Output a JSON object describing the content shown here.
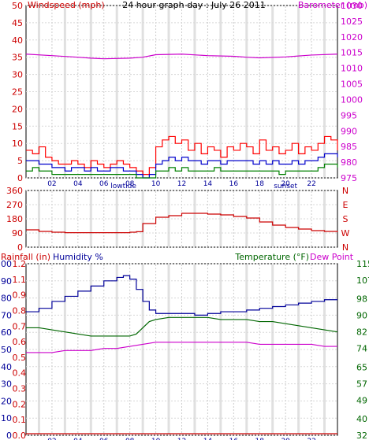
{
  "chart_data": [
    {
      "type": "line",
      "title": "24 hour graph day : July 26 2011",
      "ylabel_left": "Windspeed (mph)",
      "ylabel_right": "Barometer (mb)",
      "ylim_left": [
        0,
        50
      ],
      "ylim_right": [
        975,
        1030
      ],
      "left_ticks": [
        "0",
        "5",
        "10",
        "15",
        "20",
        "25",
        "30",
        "35",
        "40",
        "45",
        "50"
      ],
      "right_ticks": [
        "975",
        "980",
        "985",
        "990",
        "995",
        "1000",
        "1005",
        "1010",
        "1015",
        "1020",
        "1025",
        "1030"
      ],
      "x_ticks": [
        "02",
        "04",
        "06",
        "08",
        "10",
        "12",
        "14",
        "16",
        "18",
        "20",
        "22"
      ],
      "x_markers": [
        "lowtide",
        "sunset"
      ],
      "xlim": [
        0,
        24
      ],
      "series": [
        {
          "role": "barometer",
          "color": "#cc00cc",
          "axis": "right",
          "x": [
            0,
            2,
            4,
            5,
            6,
            8,
            9,
            10,
            12,
            14,
            16,
            17,
            18,
            20,
            22,
            24
          ],
          "values": [
            1014.5,
            1014,
            1013.5,
            1013.2,
            1013,
            1013.2,
            1013.5,
            1014.3,
            1014.5,
            1014,
            1013.8,
            1013.5,
            1013.3,
            1013.6,
            1014.2,
            1014.5
          ]
        },
        {
          "role": "gust",
          "color": "#ff0000",
          "axis": "left",
          "x": [
            0,
            0.5,
            1,
            1.5,
            2,
            2.5,
            3,
            3.5,
            4,
            4.5,
            5,
            5.5,
            6,
            6.5,
            7,
            7.5,
            8,
            8.5,
            9,
            9.5,
            10,
            10.5,
            11,
            11.5,
            12,
            12.5,
            13,
            13.5,
            14,
            14.5,
            15,
            15.5,
            16,
            16.5,
            17,
            17.5,
            18,
            18.5,
            19,
            19.5,
            20,
            20.5,
            21,
            21.5,
            22,
            22.5,
            23,
            23.5,
            24
          ],
          "values": [
            8,
            7,
            9,
            6,
            5,
            4,
            4,
            5,
            4,
            3,
            5,
            4,
            3,
            4,
            5,
            4,
            3,
            2,
            1,
            3,
            9,
            11,
            12,
            10,
            11,
            8,
            10,
            7,
            9,
            8,
            6,
            9,
            8,
            10,
            9,
            7,
            11,
            8,
            9,
            7,
            8,
            10,
            7,
            9,
            8,
            10,
            12,
            11,
            8
          ]
        },
        {
          "role": "average",
          "color": "#0000cc",
          "axis": "left",
          "x": [
            0,
            0.5,
            1,
            1.5,
            2,
            2.5,
            3,
            3.5,
            4,
            4.5,
            5,
            5.5,
            6,
            6.5,
            7,
            7.5,
            8,
            8.5,
            9,
            9.5,
            10,
            10.5,
            11,
            11.5,
            12,
            12.5,
            13,
            13.5,
            14,
            14.5,
            15,
            15.5,
            16,
            16.5,
            17,
            17.5,
            18,
            18.5,
            19,
            19.5,
            20,
            20.5,
            21,
            21.5,
            22,
            22.5,
            23,
            23.5,
            24
          ],
          "values": [
            5,
            5,
            4,
            4,
            3,
            3,
            2,
            3,
            3,
            2,
            3,
            2,
            2,
            3,
            3,
            2,
            2,
            1,
            0,
            1,
            4,
            5,
            6,
            5,
            6,
            5,
            5,
            4,
            5,
            5,
            4,
            5,
            5,
            5,
            5,
            4,
            5,
            4,
            5,
            4,
            4,
            5,
            4,
            5,
            5,
            6,
            7,
            7,
            6
          ]
        },
        {
          "role": "speed",
          "color": "#008000",
          "axis": "left",
          "x": [
            0,
            0.5,
            1,
            1.5,
            2,
            2.5,
            3,
            3.5,
            4,
            4.5,
            5,
            5.5,
            6,
            6.5,
            7,
            7.5,
            8,
            8.5,
            9,
            9.5,
            10,
            10.5,
            11,
            11.5,
            12,
            12.5,
            13,
            13.5,
            14,
            14.5,
            15,
            15.5,
            16,
            16.5,
            17,
            17.5,
            18,
            18.5,
            19,
            19.5,
            20,
            20.5,
            21,
            21.5,
            22,
            22.5,
            23,
            23.5,
            24
          ],
          "values": [
            2,
            3,
            2,
            2,
            1,
            1,
            1,
            1,
            1,
            1,
            1,
            1,
            1,
            1,
            1,
            1,
            1,
            0,
            0,
            0,
            2,
            2,
            3,
            2,
            3,
            2,
            2,
            2,
            2,
            3,
            2,
            2,
            2,
            2,
            2,
            2,
            2,
            2,
            2,
            1,
            2,
            2,
            2,
            2,
            2,
            3,
            4,
            4,
            3
          ]
        }
      ]
    },
    {
      "type": "line",
      "ylim": [
        0,
        360
      ],
      "left_ticks": [
        "0",
        "90",
        "180",
        "270",
        "360"
      ],
      "right_ticks": [
        "N",
        "W",
        "S",
        "E",
        "N"
      ],
      "series": [
        {
          "role": "wind direction",
          "color": "#cc0000",
          "x": [
            0,
            1,
            2,
            3,
            4,
            5,
            6,
            7,
            8,
            8.5,
            9,
            10,
            11,
            12,
            13,
            14,
            15,
            16,
            17,
            18,
            19,
            20,
            21,
            22,
            23,
            24
          ],
          "values": [
            110,
            100,
            95,
            92,
            92,
            92,
            92,
            92,
            95,
            98,
            150,
            190,
            200,
            215,
            215,
            210,
            205,
            195,
            185,
            160,
            140,
            125,
            115,
            105,
            100,
            95
          ]
        }
      ]
    },
    {
      "type": "line",
      "ylabel_rain": "Rainfall (in)",
      "ylabel_humidity": "Humidity %",
      "ylabel_temp": "Temperature (°F)",
      "ylabel_dew": "Dew Point",
      "humidity_ticks": [
        "0",
        "10",
        "20",
        "30",
        "40",
        "50",
        "60",
        "70",
        "80",
        "90",
        "100"
      ],
      "rain_ticks": [
        "0.0",
        "0.1",
        "0.2",
        "0.3",
        "0.4",
        "0.5",
        "0.6",
        "0.7",
        "0.8",
        "0.9",
        "1.1",
        "1.2"
      ],
      "temp_ticks": [
        "32",
        "40",
        "49",
        "57",
        "65",
        "74",
        "82",
        "90",
        "98",
        "107",
        "115"
      ],
      "series": [
        {
          "role": "humidity",
          "color": "#000099",
          "axis": "humidity",
          "x": [
            0,
            1,
            2,
            3,
            4,
            5,
            6,
            7,
            7.5,
            8,
            8.5,
            9,
            9.5,
            10,
            11,
            12,
            13,
            14,
            15,
            16,
            17,
            18,
            19,
            20,
            21,
            22,
            23,
            24
          ],
          "values": [
            72,
            74,
            78,
            81,
            84,
            87,
            90,
            92,
            93,
            91,
            85,
            78,
            73,
            71,
            71,
            71,
            70,
            71,
            72,
            72,
            73,
            74,
            75,
            76,
            77,
            78,
            79,
            79
          ]
        },
        {
          "role": "temperature",
          "color": "#006600",
          "axis": "temp",
          "x": [
            0,
            1,
            2,
            3,
            4,
            5,
            6,
            7,
            8,
            8.5,
            9,
            9.5,
            10,
            11,
            12,
            13,
            14,
            15,
            16,
            17,
            18,
            19,
            20,
            21,
            22,
            23,
            24
          ],
          "values": [
            84,
            84,
            83,
            82,
            81,
            80,
            80,
            80,
            80,
            81,
            84,
            87,
            88,
            89,
            89,
            89,
            89,
            88,
            88,
            88,
            87,
            87,
            86,
            85,
            84,
            83,
            82
          ]
        },
        {
          "role": "dew point",
          "color": "#cc00cc",
          "axis": "temp",
          "x": [
            0,
            1,
            2,
            3,
            4,
            5,
            6,
            7,
            8,
            9,
            10,
            11,
            12,
            13,
            14,
            15,
            16,
            17,
            18,
            19,
            20,
            21,
            22,
            23,
            24
          ],
          "values": [
            72,
            72,
            72,
            73,
            73,
            73,
            74,
            74,
            75,
            76,
            77,
            77,
            77,
            77,
            77,
            77,
            77,
            77,
            76,
            76,
            76,
            76,
            76,
            75,
            75
          ]
        },
        {
          "role": "rainfall",
          "color": "#cc0000",
          "axis": "rain",
          "x": [
            0,
            24
          ],
          "values": [
            0,
            0
          ]
        }
      ]
    }
  ]
}
